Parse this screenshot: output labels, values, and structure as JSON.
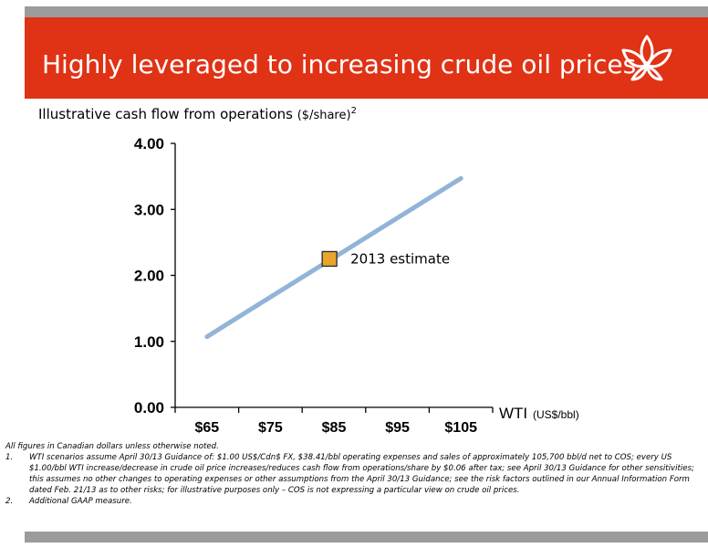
{
  "banner": {
    "title": "Highly leveraged to increasing crude oil prices",
    "logo_icon": "leaf-icon",
    "color": "#e03215"
  },
  "subtitle": {
    "main": "Illustrative cash flow from operations",
    "unit": "($/share)",
    "sup": "2"
  },
  "chart_data": {
    "type": "line",
    "title": "",
    "xlabel": "WTI",
    "xlabel_unit": "(US$/bbl)",
    "ylabel": "",
    "categories": [
      "$65",
      "$75",
      "$85",
      "$95",
      "$105"
    ],
    "x": [
      65,
      75,
      85,
      95,
      105
    ],
    "xlim": [
      60,
      110
    ],
    "ylim": [
      0,
      4
    ],
    "yticks": [
      "0.00",
      "1.00",
      "2.00",
      "3.00",
      "4.00"
    ],
    "series": [
      {
        "values": [
          1.07,
          1.67,
          2.27,
          2.87,
          3.47
        ],
        "color": "#93b3d7"
      }
    ],
    "highlight": {
      "x": 84.3,
      "y": 2.25,
      "label": "2013 estimate",
      "color": "#e8a52a"
    },
    "grid": false
  },
  "footnotes": {
    "intro": "All figures in Canadian dollars unless otherwise noted.",
    "items": [
      {
        "num": "1.",
        "text": "WTI scenarios assume April 30/13 Guidance of: $1.00 US$/Cdn$ FX, $38.41/bbl operating expenses and sales of approximately 105,700 bbl/d net to COS; every US $1.00/bbl WTI increase/decrease in crude oil price increases/reduces cash flow from operations/share by $0.06 after tax; see April 30/13 Guidance for other sensitivities; this assumes no other changes to operating expenses or other assumptions from the April 30/13 Guidance; see the risk factors outlined in our Annual Information Form dated Feb. 21/13 as to other risks; for illustrative purposes only – COS is not expressing a particular view on crude oil prices."
      },
      {
        "num": "2.",
        "text": "Additional GAAP measure."
      }
    ]
  }
}
